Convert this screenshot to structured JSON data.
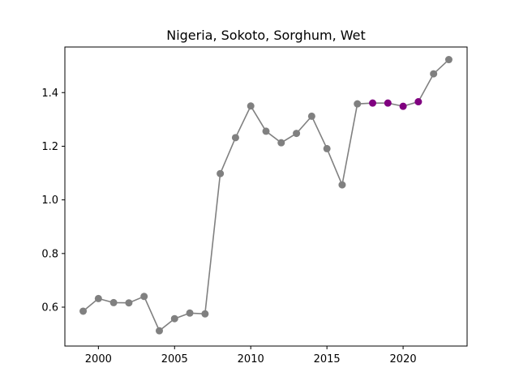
{
  "chart_data": {
    "type": "line",
    "title": "Nigeria, Sokoto, Sorghum, Wet",
    "xlabel": "",
    "ylabel": "",
    "xlim": [
      1997.8,
      2024.2
    ],
    "ylim": [
      0.455,
      1.57
    ],
    "xticks": [
      2000,
      2005,
      2010,
      2015,
      2020
    ],
    "yticks": [
      0.6,
      0.8,
      1.0,
      1.2,
      1.4
    ],
    "ytick_labels": [
      "0.6",
      "0.8",
      "1.0",
      "1.2",
      "1.4"
    ],
    "grid": false,
    "line_color": "#808080",
    "point_color": "#808080",
    "highlight_color": "#800080",
    "x": [
      1999,
      2000,
      2001,
      2002,
      2003,
      2004,
      2005,
      2006,
      2007,
      2008,
      2009,
      2010,
      2011,
      2012,
      2013,
      2014,
      2015,
      2016,
      2017,
      2018,
      2019,
      2020,
      2021,
      2022,
      2023
    ],
    "values": [
      0.585,
      0.632,
      0.617,
      0.616,
      0.64,
      0.512,
      0.557,
      0.578,
      0.575,
      1.098,
      1.232,
      1.35,
      1.256,
      1.213,
      1.248,
      1.312,
      1.191,
      1.056,
      1.358,
      1.361,
      1.361,
      1.349,
      1.366,
      1.47,
      1.523
    ],
    "highlighted_x": [
      2018,
      2019,
      2020,
      2021
    ]
  }
}
